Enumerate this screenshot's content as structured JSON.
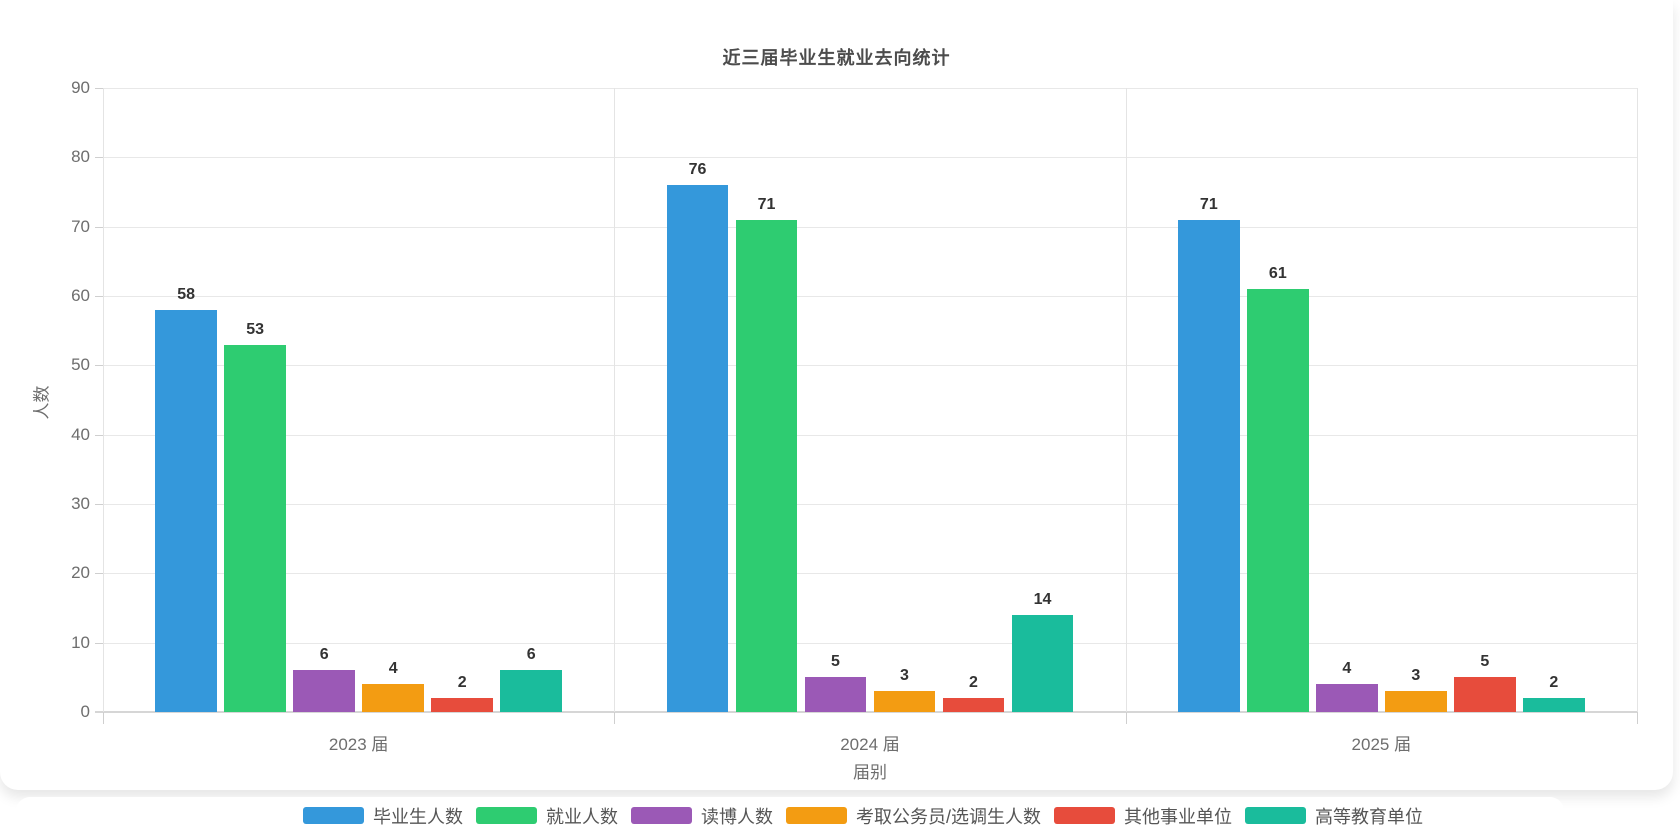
{
  "chart_data": {
    "type": "bar",
    "title": "近三届毕业生就业去向统计",
    "xlabel": "届别",
    "ylabel": "人数",
    "categories": [
      "2023 届",
      "2024 届",
      "2025 届"
    ],
    "series": [
      {
        "name": "毕业生人数",
        "color": "#3498db",
        "values": [
          58,
          76,
          71
        ]
      },
      {
        "name": "就业人数",
        "color": "#2ecc71",
        "values": [
          53,
          71,
          61
        ]
      },
      {
        "name": "读博人数",
        "color": "#9b59b6",
        "values": [
          6,
          5,
          4
        ]
      },
      {
        "name": "考取公务员/选调生人数",
        "color": "#f39c12",
        "values": [
          4,
          3,
          3
        ]
      },
      {
        "name": "其他事业单位",
        "color": "#e74c3c",
        "values": [
          2,
          2,
          5
        ]
      },
      {
        "name": "高等教育单位",
        "color": "#1abc9c",
        "values": [
          6,
          14,
          2
        ]
      }
    ],
    "ylim": [
      0,
      90
    ],
    "ytick_step": 10,
    "grid": true,
    "legend_position": "bottom",
    "value_labels": true
  }
}
